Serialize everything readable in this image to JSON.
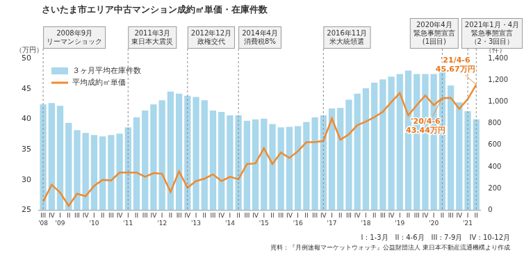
{
  "chart_data": {
    "type": "bar",
    "title": "さいたま市エリア中古マンション成約㎡単価・在庫件数",
    "y_label": "（万円）",
    "y2_label": "（件）",
    "categories": [
      [
        "III",
        "'08"
      ],
      "IV",
      [
        "I",
        "'09"
      ],
      "II",
      "III",
      "IV",
      [
        "I",
        "'10"
      ],
      "II",
      "III",
      "IV",
      [
        "I",
        "'11"
      ],
      "II",
      "III",
      "IV",
      [
        "I",
        "'12"
      ],
      "II",
      "III",
      "IV",
      [
        "I",
        "'13"
      ],
      "II",
      "III",
      "IV",
      [
        "I",
        "'14"
      ],
      "II",
      "III",
      "IV",
      [
        "I",
        "'15"
      ],
      "II",
      "III",
      "IV",
      [
        "I",
        "'16"
      ],
      "II",
      "III",
      "IV",
      [
        "I",
        "'17"
      ],
      "II",
      "III",
      "IV",
      [
        "I",
        "'18"
      ],
      "II",
      "III",
      "IV",
      [
        "I",
        "'19"
      ],
      "II",
      "III",
      "IV",
      [
        "I",
        "'20"
      ],
      "II",
      "III",
      "IV",
      [
        "I",
        "'21"
      ],
      "II"
    ],
    "series": [
      {
        "name": "３ヶ月平均在庫件数",
        "type": "bar",
        "color": "#a9d7eb",
        "axis": "y2",
        "values": [
          975,
          988,
          963,
          806,
          738,
          713,
          694,
          681,
          694,
          706,
          763,
          856,
          919,
          975,
          1013,
          1094,
          1075,
          1056,
          1044,
          1013,
          919,
          906,
          875,
          875,
          825,
          838,
          844,
          794,
          763,
          769,
          775,
          813,
          856,
          875,
          938,
          944,
          1019,
          1075,
          1125,
          1175,
          1206,
          1231,
          1256,
          1288,
          1256,
          1256,
          1256,
          1281,
          1150,
          994,
          913,
          838
        ]
      },
      {
        "name": "平均成約㎡単価",
        "type": "line",
        "color": "#f08a2c",
        "axis": "y",
        "values": [
          26.4,
          29.2,
          27.9,
          25.7,
          27.7,
          27.3,
          29.0,
          30.0,
          29.9,
          31.2,
          31.2,
          31.2,
          30.5,
          31.1,
          31.0,
          28.0,
          31.4,
          28.7,
          29.8,
          30.2,
          30.9,
          29.8,
          30.5,
          30.1,
          32.6,
          32.7,
          35.2,
          32.6,
          34.5,
          33.6,
          34.7,
          36.2,
          36.2,
          36.4,
          40.1,
          36.6,
          37.5,
          39.0,
          39.6,
          40.3,
          41.2,
          42.8,
          44.3,
          40.6,
          42.3,
          43.9,
          42.3,
          43.44,
          43.5,
          41.7,
          43.3,
          45.67
        ]
      }
    ],
    "ylim": [
      25,
      50
    ],
    "yticks": [
      25,
      30,
      35,
      40,
      45,
      50
    ],
    "y2lim": [
      0,
      1400
    ],
    "y2ticks": [
      0,
      200,
      400,
      600,
      800,
      {
        "value": 1000,
        "label": "1,000"
      },
      {
        "value": 1200,
        "label": "1,200"
      },
      {
        "value": 1400,
        "label": "1,400"
      }
    ],
    "grid": false,
    "legend": "upper left",
    "events": [
      {
        "label": [
          "2008年9月",
          "リーマンショック"
        ],
        "x_index": [
          0
        ]
      },
      {
        "label": [
          "2011年3月",
          "東日本大震災"
        ],
        "x_index": [
          10
        ]
      },
      {
        "label": [
          "2012年12月",
          "政権交代"
        ],
        "x_index": [
          17
        ]
      },
      {
        "label": [
          "2014年4月",
          "消費税8%"
        ],
        "x_index": [
          23
        ]
      },
      {
        "label": [
          "2016年11月",
          "米大統領選"
        ],
        "x_index": [
          33
        ]
      },
      {
        "label": [
          "2020年4月",
          "緊急事態宣言",
          "(1回目)"
        ],
        "x_index": [
          47
        ]
      },
      {
        "label": [
          "2021年1月・4月",
          "緊急事態宣言",
          "（2・3回目）"
        ],
        "x_index": [
          50,
          51
        ]
      }
    ],
    "annotations": [
      {
        "text": [
          "'20/4-6",
          "43.44万円"
        ],
        "x_index": 47
      },
      {
        "text": [
          "'21/4-6",
          "45.67万円"
        ],
        "x_index": 51
      }
    ],
    "footnotes": [
      "I : 1-3月　II : 4-6月　III : 7-9月　IV : 10-12月",
      "資料：『月例速報マーケットウォッチ』公益財団法人 東日本不動産流通機構より作成"
    ]
  }
}
